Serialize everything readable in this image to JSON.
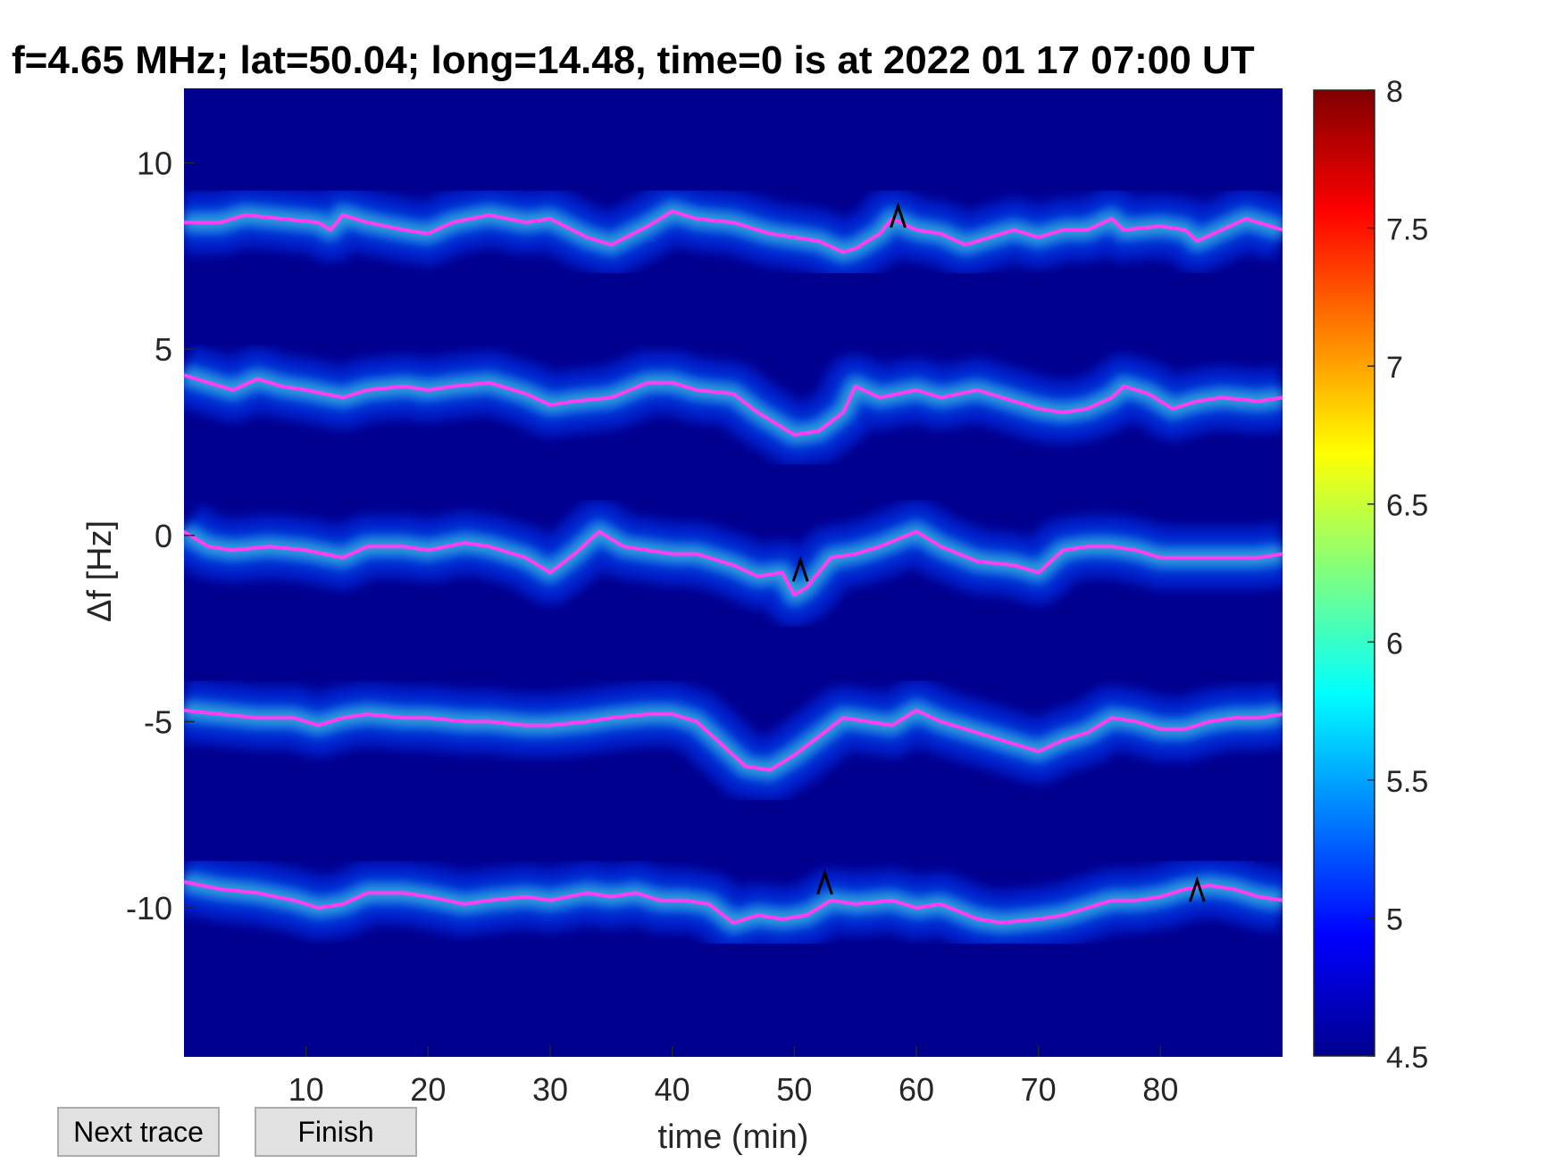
{
  "chart_data": {
    "type": "heatmap",
    "title": "f=4.65 MHz;  lat=50.04; long=14.48, time=0 is at 2022 01 17 07:00 UT",
    "xlabel": "time (min)",
    "ylabel": "Δf [Hz]",
    "xlim": [
      0,
      90
    ],
    "ylim": [
      -14,
      12
    ],
    "xticks": [
      10,
      20,
      30,
      40,
      50,
      60,
      70,
      80
    ],
    "yticks": [
      10,
      5,
      0,
      -5,
      -10
    ],
    "colorbar": {
      "range": [
        4.5,
        8
      ],
      "ticks": [
        8,
        7.5,
        7,
        6.5,
        6,
        5.5,
        5,
        4.5
      ],
      "colormap": "jet"
    },
    "background_color": "#00008f",
    "trace_color": "#ff3df5",
    "traces": [
      {
        "x": [
          0,
          3,
          5,
          8,
          11,
          12,
          13,
          15,
          18,
          20,
          22,
          25,
          28,
          30,
          33,
          35,
          38,
          40,
          42,
          45,
          48,
          50,
          52,
          54,
          55,
          57,
          58,
          60,
          62,
          64,
          66,
          68,
          70,
          72,
          74,
          76,
          77,
          80,
          82,
          83,
          85,
          87,
          90
        ],
        "y": [
          8.4,
          8.4,
          8.6,
          8.5,
          8.4,
          8.2,
          8.6,
          8.4,
          8.2,
          8.1,
          8.4,
          8.6,
          8.4,
          8.5,
          8.0,
          7.8,
          8.3,
          8.7,
          8.5,
          8.4,
          8.1,
          8.0,
          7.9,
          7.6,
          7.7,
          8.1,
          8.5,
          8.2,
          8.1,
          7.8,
          8.0,
          8.2,
          8.0,
          8.2,
          8.2,
          8.5,
          8.2,
          8.3,
          8.2,
          7.9,
          8.2,
          8.5,
          8.2
        ]
      },
      {
        "x": [
          0,
          2,
          4,
          6,
          8,
          10,
          13,
          15,
          18,
          20,
          22,
          25,
          28,
          30,
          32,
          35,
          38,
          40,
          42,
          45,
          47,
          50,
          52,
          54,
          55,
          57,
          60,
          62,
          65,
          67,
          70,
          72,
          74,
          76,
          77,
          79,
          81,
          83,
          85,
          88,
          90
        ],
        "y": [
          4.3,
          4.1,
          3.9,
          4.2,
          4.0,
          3.9,
          3.7,
          3.9,
          4.0,
          3.9,
          4.0,
          4.1,
          3.8,
          3.5,
          3.6,
          3.7,
          4.1,
          4.1,
          3.9,
          3.8,
          3.3,
          2.7,
          2.8,
          3.3,
          4.0,
          3.7,
          3.9,
          3.7,
          3.9,
          3.7,
          3.4,
          3.3,
          3.4,
          3.7,
          4.0,
          3.8,
          3.4,
          3.6,
          3.7,
          3.6,
          3.7
        ]
      },
      {
        "x": [
          0,
          2,
          4,
          7,
          10,
          13,
          15,
          18,
          20,
          23,
          25,
          28,
          30,
          32,
          34,
          36,
          38,
          40,
          42,
          45,
          47,
          49,
          50,
          51,
          53,
          55,
          57,
          60,
          62,
          65,
          68,
          70,
          72,
          74,
          76,
          78,
          80,
          82,
          85,
          88,
          90
        ],
        "y": [
          0.1,
          -0.3,
          -0.4,
          -0.3,
          -0.4,
          -0.6,
          -0.3,
          -0.3,
          -0.4,
          -0.2,
          -0.3,
          -0.6,
          -1.0,
          -0.5,
          0.1,
          -0.3,
          -0.4,
          -0.5,
          -0.5,
          -0.8,
          -1.1,
          -1.0,
          -1.6,
          -1.4,
          -0.6,
          -0.5,
          -0.3,
          0.1,
          -0.3,
          -0.7,
          -0.8,
          -1.0,
          -0.4,
          -0.3,
          -0.3,
          -0.4,
          -0.6,
          -0.6,
          -0.6,
          -0.6,
          -0.5
        ]
      },
      {
        "x": [
          0,
          3,
          6,
          9,
          11,
          13,
          15,
          18,
          20,
          23,
          25,
          28,
          30,
          33,
          35,
          38,
          40,
          42,
          44,
          46,
          48,
          50,
          52,
          54,
          56,
          58,
          60,
          62,
          65,
          68,
          70,
          72,
          74,
          76,
          78,
          80,
          82,
          84,
          86,
          88,
          90
        ],
        "y": [
          -4.7,
          -4.8,
          -4.9,
          -4.9,
          -5.1,
          -4.9,
          -4.8,
          -4.9,
          -4.9,
          -5.0,
          -5.0,
          -5.1,
          -5.1,
          -5.0,
          -4.9,
          -4.8,
          -4.8,
          -5.0,
          -5.6,
          -6.2,
          -6.3,
          -5.9,
          -5.4,
          -4.9,
          -5.0,
          -5.1,
          -4.7,
          -5.0,
          -5.3,
          -5.6,
          -5.8,
          -5.5,
          -5.3,
          -4.9,
          -5.0,
          -5.2,
          -5.2,
          -5.0,
          -4.9,
          -4.9,
          -4.8
        ]
      },
      {
        "x": [
          0,
          3,
          6,
          9,
          11,
          13,
          15,
          18,
          20,
          23,
          25,
          28,
          30,
          33,
          35,
          37,
          39,
          41,
          43,
          45,
          47,
          49,
          51,
          53,
          55,
          58,
          60,
          62,
          65,
          67,
          70,
          72,
          74,
          76,
          78,
          80,
          82,
          84,
          86,
          88,
          90
        ],
        "y": [
          -9.3,
          -9.5,
          -9.6,
          -9.8,
          -10.0,
          -9.9,
          -9.6,
          -9.6,
          -9.7,
          -9.9,
          -9.8,
          -9.7,
          -9.8,
          -9.6,
          -9.7,
          -9.6,
          -9.8,
          -9.8,
          -9.9,
          -10.4,
          -10.2,
          -10.3,
          -10.2,
          -9.8,
          -9.9,
          -9.8,
          -10.0,
          -9.9,
          -10.3,
          -10.4,
          -10.3,
          -10.2,
          -10.0,
          -9.8,
          -9.8,
          -9.7,
          -9.5,
          -9.4,
          -9.5,
          -9.7,
          -9.8
        ]
      }
    ],
    "markers": [
      {
        "x": 58.5,
        "y": 8.6
      },
      {
        "x": 50.5,
        "y": -0.9
      },
      {
        "x": 52.5,
        "y": -9.3
      },
      {
        "x": 83.0,
        "y": -9.5
      }
    ]
  },
  "controls": {
    "next_trace_label": "Next trace",
    "finish_label": "Finish"
  }
}
